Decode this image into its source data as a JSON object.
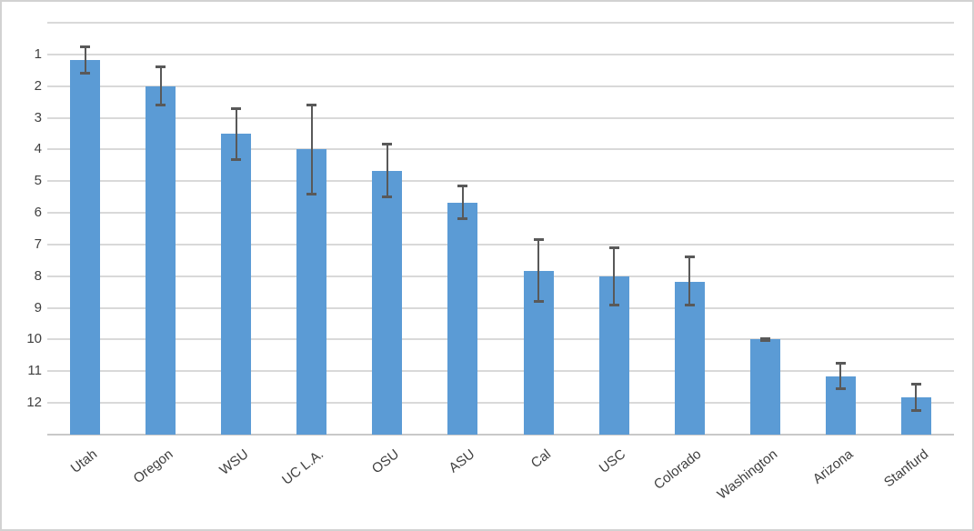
{
  "chart_data": {
    "type": "bar",
    "title": "",
    "xlabel": "",
    "ylabel": "",
    "categories": [
      "Utah",
      "Oregon",
      "WSU",
      "UC L.A.",
      "OSU",
      "ASU",
      "Cal",
      "USC",
      "Colorado",
      "Washington",
      "Arizona",
      "Stanfurd"
    ],
    "values": [
      1.17,
      2.0,
      3.5,
      4.0,
      4.67,
      5.67,
      7.83,
      8.0,
      8.17,
      10.0,
      11.17,
      11.83
    ],
    "error_low": [
      0.75,
      1.38,
      2.7,
      2.6,
      3.84,
      5.16,
      6.85,
      7.1,
      7.4,
      9.97,
      10.74,
      11.4
    ],
    "error_high": [
      1.6,
      2.6,
      4.33,
      5.4,
      5.5,
      6.17,
      8.8,
      8.9,
      8.9,
      10.03,
      11.56,
      12.23
    ],
    "y_axis": {
      "ticks": [
        "1",
        "2",
        "3",
        "4",
        "5",
        "6",
        "7",
        "8",
        "9",
        "10",
        "11",
        "12"
      ],
      "min": 0,
      "max": 13,
      "inverted": true,
      "gridlines": "on"
    },
    "legend": "none",
    "colors": {
      "bar": "#5b9bd5",
      "error_bar": "#595959",
      "gridline": "#d9d9d9",
      "axis_line": "#c9c9c9",
      "tick_label": "#404040",
      "border": "#d2d2d2",
      "background": "#ffffff"
    }
  }
}
